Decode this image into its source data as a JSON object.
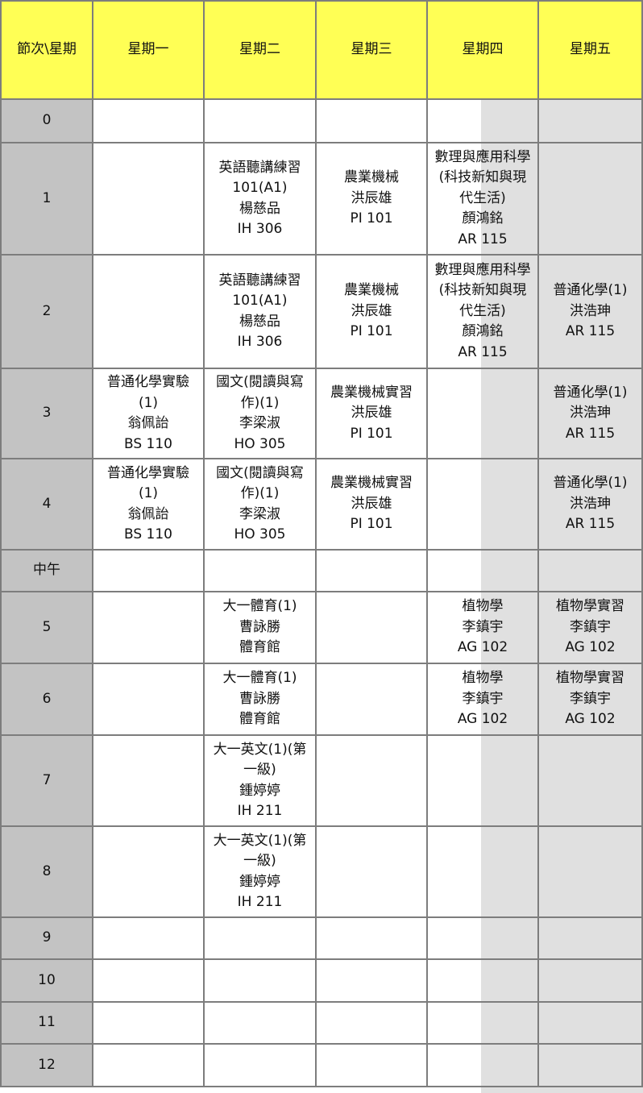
{
  "header": {
    "corner": "節次\\星期",
    "days": [
      "星期一",
      "星期二",
      "星期三",
      "星期四",
      "星期五"
    ]
  },
  "rows": [
    {
      "period": "0",
      "cells": [
        [],
        [],
        [],
        [],
        []
      ]
    },
    {
      "period": "1",
      "cells": [
        [],
        [
          "英語聽講練習",
          "101(A1)",
          "楊慈品",
          "IH 306"
        ],
        [
          "農業機械",
          "洪辰雄",
          "PI 101"
        ],
        [
          "數理與應用科學",
          "(科技新知與現",
          "代生活)",
          "顏鴻銘",
          "AR 115"
        ],
        []
      ]
    },
    {
      "period": "2",
      "cells": [
        [],
        [
          "英語聽講練習",
          "101(A1)",
          "楊慈品",
          "IH 306"
        ],
        [
          "農業機械",
          "洪辰雄",
          "PI 101"
        ],
        [
          "數理與應用科學",
          "(科技新知與現",
          "代生活)",
          "顏鴻銘",
          "AR 115"
        ],
        [
          "普通化學(1)",
          "洪浩珅",
          "AR 115"
        ]
      ]
    },
    {
      "period": "3",
      "cells": [
        [
          "普通化學實驗",
          "(1)",
          "翁佩詒",
          "BS 110"
        ],
        [
          "國文(閱讀與寫",
          "作)(1)",
          "李梁淑",
          "HO 305"
        ],
        [
          "農業機械實習",
          "洪辰雄",
          "PI 101"
        ],
        [],
        [
          "普通化學(1)",
          "洪浩珅",
          "AR 115"
        ]
      ]
    },
    {
      "period": "4",
      "cells": [
        [
          "普通化學實驗",
          "(1)",
          "翁佩詒",
          "BS 110"
        ],
        [
          "國文(閱讀與寫",
          "作)(1)",
          "李梁淑",
          "HO 305"
        ],
        [
          "農業機械實習",
          "洪辰雄",
          "PI 101"
        ],
        [],
        [
          "普通化學(1)",
          "洪浩珅",
          "AR 115"
        ]
      ]
    },
    {
      "period": "中午",
      "cells": [
        [],
        [],
        [],
        [],
        []
      ]
    },
    {
      "period": "5",
      "cells": [
        [],
        [
          "大一體育(1)",
          "曹詠勝",
          "體育館"
        ],
        [],
        [
          "植物學",
          "李鎮宇",
          "AG 102"
        ],
        [
          "植物學實習",
          "李鎮宇",
          "AG 102"
        ]
      ]
    },
    {
      "period": "6",
      "cells": [
        [],
        [
          "大一體育(1)",
          "曹詠勝",
          "體育館"
        ],
        [],
        [
          "植物學",
          "李鎮宇",
          "AG 102"
        ],
        [
          "植物學實習",
          "李鎮宇",
          "AG 102"
        ]
      ]
    },
    {
      "period": "7",
      "cells": [
        [],
        [
          "大一英文(1)(第",
          "一級)",
          "鍾婷婷",
          "IH 211"
        ],
        [],
        [],
        []
      ]
    },
    {
      "period": "8",
      "cells": [
        [],
        [
          "大一英文(1)(第",
          "一級)",
          "鍾婷婷",
          "IH 211"
        ],
        [],
        [],
        []
      ]
    },
    {
      "period": "9",
      "cells": [
        [],
        [],
        [],
        [],
        []
      ]
    },
    {
      "period": "10",
      "cells": [
        [],
        [],
        [],
        [],
        []
      ]
    },
    {
      "period": "11",
      "cells": [
        [],
        [],
        [],
        [],
        []
      ]
    },
    {
      "period": "12",
      "cells": [
        [],
        [],
        [],
        [],
        []
      ]
    }
  ]
}
